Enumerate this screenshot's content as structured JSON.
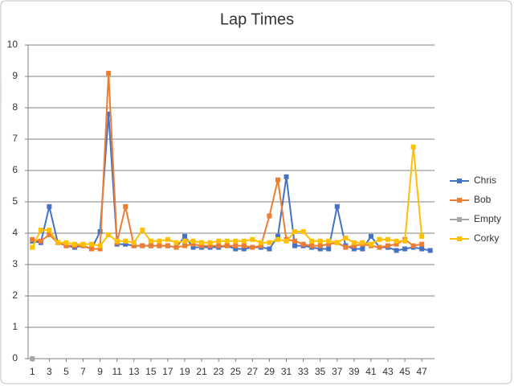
{
  "chart_data": {
    "type": "line",
    "title": "Lap Times",
    "x": [
      1,
      2,
      3,
      4,
      5,
      6,
      7,
      8,
      9,
      10,
      11,
      12,
      13,
      14,
      15,
      16,
      17,
      18,
      19,
      20,
      21,
      22,
      23,
      24,
      25,
      26,
      27,
      28,
      29,
      30,
      31,
      32,
      33,
      34,
      35,
      36,
      37,
      38,
      39,
      40,
      41,
      42,
      43,
      44,
      45,
      46,
      47,
      48
    ],
    "xlim": [
      0.5,
      48.5
    ],
    "xticks": [
      1,
      3,
      5,
      7,
      9,
      11,
      13,
      15,
      17,
      19,
      21,
      23,
      25,
      27,
      29,
      31,
      33,
      35,
      37,
      39,
      41,
      43,
      45,
      47
    ],
    "ylim": [
      0,
      10
    ],
    "yticks": [
      0,
      1,
      2,
      3,
      4,
      5,
      6,
      7,
      8,
      9,
      10
    ],
    "grid": true,
    "legend": "right",
    "series": [
      {
        "name": "Chris",
        "color": "#4472c4",
        "values": [
          3.75,
          3.7,
          4.85,
          3.7,
          3.6,
          3.55,
          3.6,
          3.5,
          4.05,
          7.8,
          3.65,
          3.65,
          3.6,
          3.6,
          3.6,
          3.6,
          3.6,
          3.55,
          3.9,
          3.55,
          3.55,
          3.55,
          3.55,
          3.6,
          3.5,
          3.5,
          3.55,
          3.55,
          3.5,
          3.9,
          5.8,
          3.6,
          3.6,
          3.55,
          3.5,
          3.5,
          4.85,
          3.6,
          3.5,
          3.5,
          3.9,
          3.55,
          3.55,
          3.45,
          3.5,
          3.55,
          3.5,
          3.45
        ]
      },
      {
        "name": "Bob",
        "color": "#ed7d31",
        "values": [
          3.8,
          3.75,
          3.95,
          3.7,
          3.6,
          3.6,
          3.6,
          3.5,
          3.5,
          9.1,
          3.7,
          4.85,
          3.6,
          3.6,
          3.6,
          3.6,
          3.6,
          3.55,
          3.6,
          3.65,
          3.6,
          3.6,
          3.6,
          3.6,
          3.6,
          3.6,
          3.55,
          3.6,
          4.55,
          5.7,
          3.8,
          3.75,
          3.65,
          3.6,
          3.6,
          3.65,
          3.7,
          3.55,
          3.6,
          3.65,
          3.6,
          3.55,
          3.6,
          3.65,
          3.8,
          3.6,
          3.65,
          null
        ]
      },
      {
        "name": "Empty",
        "color": "#a5a5a5",
        "values": [
          0,
          null,
          null,
          null,
          null,
          null,
          null,
          null,
          null,
          null,
          null,
          null,
          null,
          null,
          null,
          null,
          null,
          null,
          null,
          null,
          null,
          null,
          null,
          null,
          null,
          null,
          null,
          null,
          null,
          null,
          null,
          null,
          null,
          null,
          null,
          null,
          null,
          null,
          null,
          null,
          null,
          null,
          null,
          null,
          null,
          null,
          null,
          null
        ]
      },
      {
        "name": "Corky",
        "color": "#ffc000",
        "values": [
          3.55,
          4.1,
          4.1,
          3.7,
          3.7,
          3.65,
          3.65,
          3.65,
          3.6,
          3.95,
          3.75,
          3.75,
          3.7,
          4.1,
          3.75,
          3.75,
          3.8,
          3.7,
          3.75,
          3.75,
          3.7,
          3.7,
          3.75,
          3.75,
          3.75,
          3.75,
          3.8,
          3.7,
          3.7,
          3.8,
          3.75,
          4.05,
          4.05,
          3.75,
          3.75,
          3.75,
          3.7,
          3.85,
          3.7,
          3.7,
          3.65,
          3.8,
          3.8,
          3.75,
          3.75,
          6.75,
          3.9,
          null
        ]
      }
    ]
  }
}
